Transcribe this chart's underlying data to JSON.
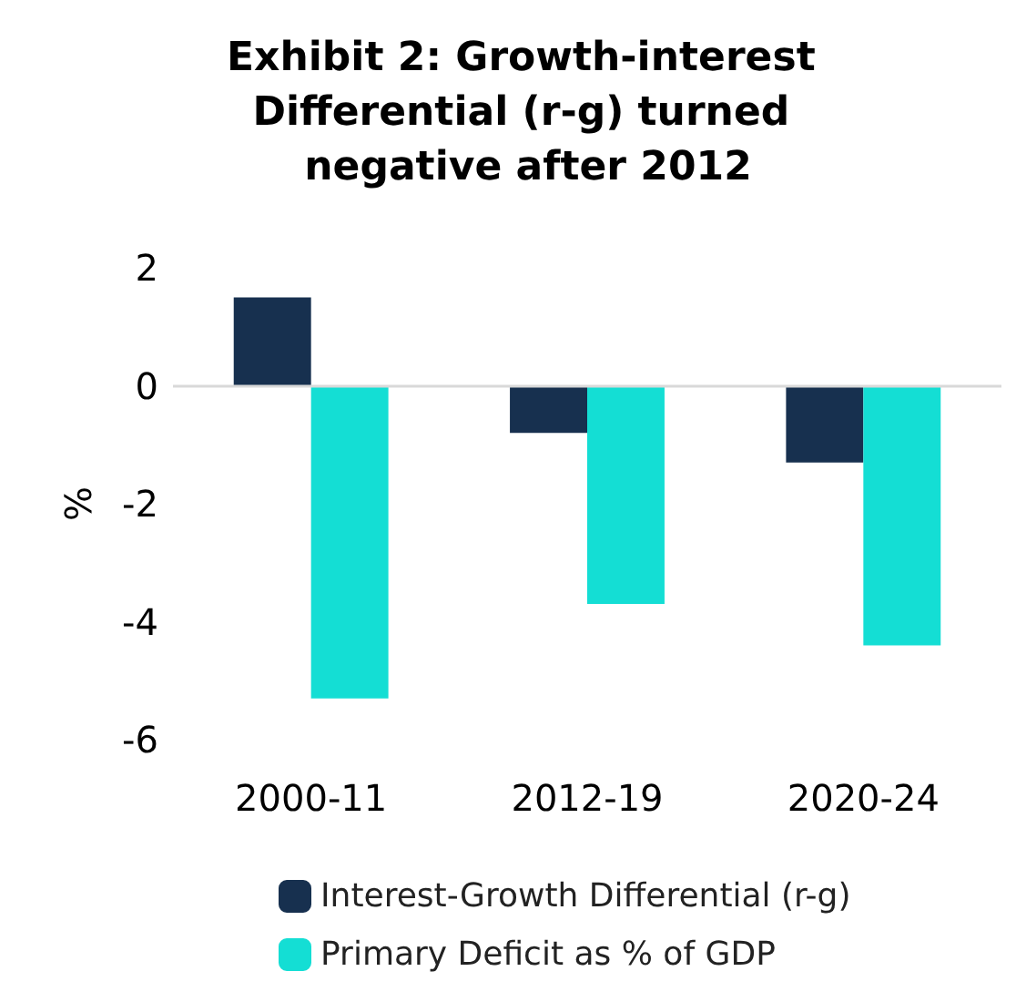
{
  "chart_data": {
    "type": "bar",
    "title": "Exhibit 2: Growth-interest Differential (r-g) turned negative after 2012",
    "ylabel": "%",
    "categories": [
      "2000-11",
      "2012-19",
      "2020-24"
    ],
    "series": [
      {
        "name": "Interest-Growth Differential (r-g)",
        "color": "#17304f",
        "values": [
          1.5,
          -0.8,
          -1.3
        ]
      },
      {
        "name": "Primary Deficit as % of GDP",
        "color": "#14ded4",
        "values": [
          -5.3,
          -3.7,
          -4.4
        ]
      }
    ],
    "ref_lines": [
      {
        "axis": "y",
        "value": 0,
        "color": "#d9d9d9"
      }
    ],
    "ylim": [
      -6,
      2
    ],
    "yticks": [
      -6,
      -4,
      -2,
      0,
      2
    ],
    "grid": false,
    "legend": "bottom"
  }
}
